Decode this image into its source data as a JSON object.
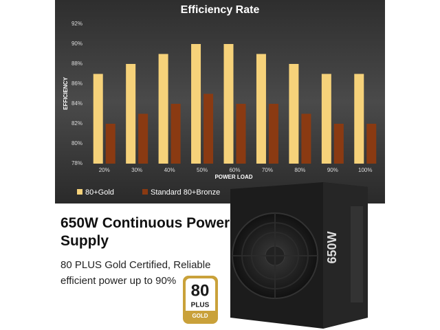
{
  "chart_data": {
    "type": "bar",
    "title": "Efficiency Rate",
    "x_label": "POWER LOAD",
    "y_label": "EFFICIENCY",
    "categories": [
      "20%",
      "30%",
      "40%",
      "50%",
      "60%",
      "70%",
      "80%",
      "90%",
      "100%"
    ],
    "series": [
      {
        "name": "80+Gold",
        "color": "#f6d27a",
        "values": [
          87,
          88,
          89,
          90,
          90,
          89,
          88,
          87,
          87
        ]
      },
      {
        "name": "Standard 80+Bronze",
        "color": "#8a3a12",
        "values": [
          82,
          83,
          84,
          85,
          84,
          84,
          83,
          82,
          82
        ]
      }
    ],
    "ylim": [
      78,
      92
    ],
    "yticks": [
      {
        "value": 78,
        "label": "78%"
      },
      {
        "value": 80,
        "label": "80%"
      },
      {
        "value": 82,
        "label": "82%"
      },
      {
        "value": 84,
        "label": "84%"
      },
      {
        "value": 86,
        "label": "86%"
      },
      {
        "value": 88,
        "label": "88%"
      },
      {
        "value": 90,
        "label": "90%"
      },
      {
        "value": 92,
        "label": "92%"
      }
    ],
    "grid": false,
    "legend": "bottom"
  },
  "product": {
    "headline": "650W Continuous Power Supply",
    "description": "80 PLUS Gold Certified, Reliable efficient power up to 90%",
    "badge": {
      "number": "80",
      "plus": "PLUS",
      "grade": "GOLD"
    },
    "unit_label": "650W"
  }
}
